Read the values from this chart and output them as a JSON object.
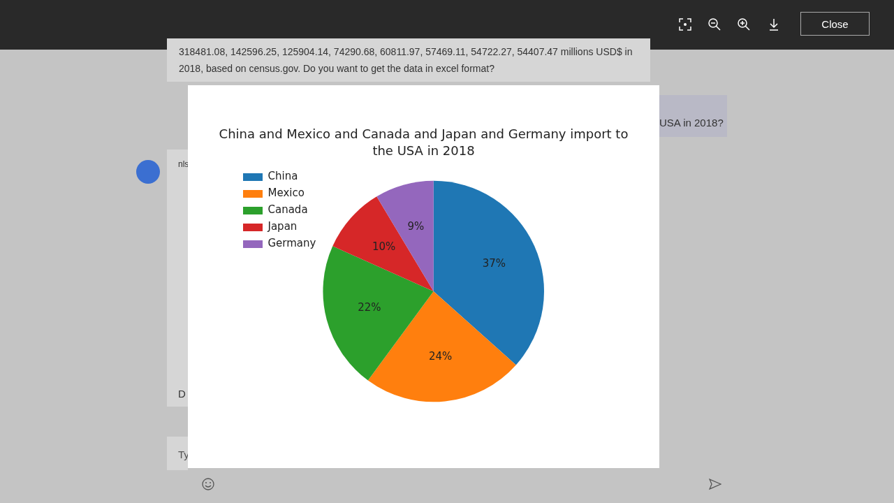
{
  "chart_data": {
    "type": "pie",
    "title": "China and Mexico and Canada and Japan and Germany import to the USA in 2018",
    "categories": [
      "China",
      "Mexico",
      "Canada",
      "Japan",
      "Germany"
    ],
    "values": [
      36.6,
      23.5,
      21.6,
      9.7,
      8.6
    ],
    "colors": [
      "#1f77b4",
      "#ff7f0e",
      "#2ca02c",
      "#d62728",
      "#9467bd"
    ],
    "value_labels": [
      "37%",
      "24%",
      "22%",
      "10%",
      "9%"
    ],
    "legend": "top left",
    "annotations": [
      "318481.08, 142596.25, 125904.14, 74290.68, 60811.97, 57469.11, 54722.27, 54407.47 millions USD$ in",
      "2018, based on census.gov. Do you want to get the data in excel format?",
      "USA in 2018?",
      "nls",
      "D",
      "Ty",
      "Close"
    ]
  }
}
